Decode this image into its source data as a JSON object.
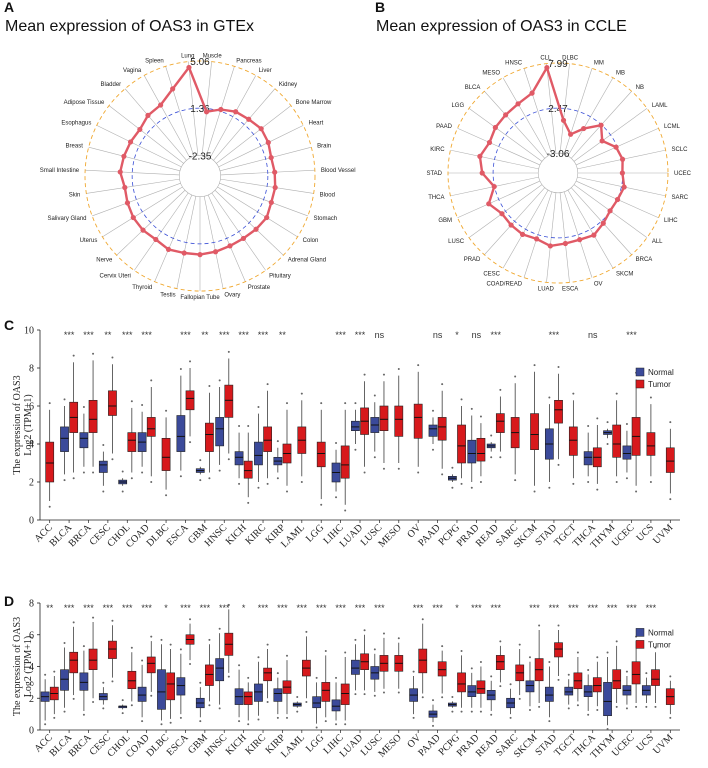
{
  "panels": {
    "A": {
      "letter": "A",
      "title": "Mean expression of OAS3 in GTEx"
    },
    "B": {
      "letter": "B",
      "title": "Mean expression of OAS3 in CCLE"
    },
    "C": {
      "letter": "C"
    },
    "D": {
      "letter": "D"
    }
  },
  "colors": {
    "tumor": "#d7191c",
    "normal": "#3b4a9a",
    "radar_line": "#e05a66",
    "outer_ring": "#f0a830",
    "mid_ring": "#3a4fd6"
  },
  "chart_data": [
    {
      "id": "A",
      "type": "radar",
      "title": "Mean expression of OAS3 in GTEx",
      "ring_labels": [
        "5.06",
        "1.36",
        "-2.35"
      ],
      "range": [
        -2.35,
        5.06
      ],
      "categories": [
        "Muscle",
        "Pancreas",
        "Liver",
        "Kidney",
        "Bone Marrow",
        "Heart",
        "Brain",
        "Blood Vessel",
        "Blood",
        "Stomach",
        "Colon",
        "Adrenal Gland",
        "Pituitary",
        "Prostate",
        "Ovary",
        "Fallopian Tube",
        "Testis",
        "Thyroid",
        "Cervix Uteri",
        "Nerve",
        "Uterus",
        "Salivary Gland",
        "Skin",
        "Small Intestine",
        "Breast",
        "Esophagus",
        "Adipose Tissue",
        "Bladder",
        "Vagina",
        "Spleen",
        "Lung"
      ],
      "values": [
        1.1,
        1.5,
        1.8,
        1.9,
        2.1,
        2.0,
        1.8,
        1.9,
        2.0,
        2.0,
        2.2,
        2.1,
        2.0,
        2.0,
        2.1,
        2.2,
        2.2,
        2.3,
        2.1,
        2.2,
        2.2,
        2.1,
        2.0,
        2.3,
        2.2,
        2.1,
        2.0,
        2.3,
        2.4,
        3.2,
        4.6
      ]
    },
    {
      "id": "B",
      "type": "radar",
      "title": "Mean expression of OAS3 in CCLE",
      "ring_labels": [
        "7.99",
        "2.47",
        "-3.06"
      ],
      "range": [
        -3.06,
        7.99
      ],
      "categories": [
        "DLBC",
        "MM",
        "MB",
        "NB",
        "LAML",
        "LCML",
        "SCLC",
        "UCEC",
        "SARC",
        "LIHC",
        "ALL",
        "BRCA",
        "SKCM",
        "OV",
        "ESCA",
        "LUAD",
        "COAD/READ",
        "CESC",
        "PRAD",
        "LUSC",
        "GBM",
        "THCA",
        "STAD",
        "KIRC",
        "PAAD",
        "LGG",
        "BLCA",
        "MESO",
        "HNSC",
        "CLL"
      ],
      "values": [
        1.0,
        -0.5,
        0.8,
        2.4,
        1.2,
        2.3,
        2.6,
        2.4,
        2.8,
        2.5,
        2.4,
        2.8,
        3.3,
        3.1,
        3.2,
        3.5,
        3.0,
        3.2,
        3.1,
        3.0,
        3.8,
        2.5,
        3.8,
        4.3,
        3.7,
        4.0,
        4.1,
        4.3,
        4.8,
        7.5
      ]
    },
    {
      "id": "C",
      "type": "box",
      "ylabel_lines": [
        "The expression  of OAS3",
        "Log2 (TPM+1)"
      ],
      "ylim": [
        0,
        10
      ],
      "yticks": [
        0,
        2,
        4,
        6,
        8,
        10
      ],
      "legend": [
        "Normal",
        "Tumor"
      ],
      "categories": [
        "ACC",
        "BLCA",
        "BRCA",
        "CESC",
        "CHOL",
        "COAD",
        "DLBC",
        "ESCA",
        "GBM",
        "HNSC",
        "KICH",
        "KIRC",
        "KIRP",
        "LAML",
        "LGG",
        "LIHC",
        "LUAD",
        "LUSC",
        "MESO",
        "OV",
        "PAAD",
        "PCPG",
        "PRAD",
        "READ",
        "SARC",
        "SKCM",
        "STAD",
        "TGCT",
        "THCA",
        "THYM",
        "UCEC",
        "UCS",
        "UVM"
      ],
      "significance": [
        "",
        "***",
        "***",
        "**",
        "***",
        "***",
        "",
        "***",
        "**",
        "***",
        "***",
        "***",
        "**",
        "",
        "",
        "***",
        "***",
        "ns",
        "",
        "",
        "ns",
        "*",
        "ns",
        "***",
        "",
        "",
        "***",
        "",
        "ns",
        "",
        "***",
        "",
        ""
      ],
      "normal": [
        null,
        [
          2.4,
          3.6,
          4.3,
          4.9,
          6.0
        ],
        [
          2.8,
          3.8,
          4.3,
          4.6,
          5.6
        ],
        [
          1.8,
          2.5,
          2.9,
          3.1,
          3.6
        ],
        [
          1.8,
          1.9,
          2.0,
          2.1,
          2.2
        ],
        [
          2.8,
          3.6,
          4.1,
          4.6,
          5.7
        ],
        null,
        [
          2.6,
          3.6,
          4.4,
          5.5,
          7.6
        ],
        [
          2.4,
          2.5,
          2.6,
          2.7,
          2.8
        ],
        [
          2.9,
          3.9,
          4.8,
          5.4,
          7.0
        ],
        [
          2.2,
          2.9,
          3.3,
          3.6,
          4.6
        ],
        [
          2.0,
          2.9,
          3.4,
          4.1,
          5.6
        ],
        [
          2.5,
          2.9,
          3.1,
          3.3,
          3.8
        ],
        null,
        null,
        [
          1.5,
          2.0,
          2.5,
          3.0,
          3.7
        ],
        [
          4.0,
          4.7,
          4.9,
          5.2,
          5.8
        ],
        [
          3.6,
          4.6,
          5.0,
          5.4,
          6.2
        ],
        null,
        null,
        [
          4.0,
          4.4,
          4.8,
          5.0,
          5.4
        ],
        [
          2.0,
          2.1,
          2.2,
          2.3,
          2.4
        ],
        [
          2.0,
          3.0,
          3.5,
          4.2,
          5.5
        ],
        [
          3.6,
          3.8,
          3.9,
          4.0,
          4.1
        ],
        null,
        null,
        [
          2.0,
          3.2,
          4.0,
          4.8,
          6.1
        ],
        null,
        [
          2.3,
          2.9,
          3.3,
          3.6,
          4.6
        ],
        [
          4.3,
          4.5,
          4.6,
          4.7,
          4.8
        ],
        [
          2.5,
          3.2,
          3.5,
          3.9,
          4.7
        ],
        null,
        null
      ],
      "tumor": [
        [
          1.0,
          2.0,
          3.0,
          4.1,
          5.8
        ],
        [
          2.5,
          4.6,
          5.4,
          6.2,
          8.3
        ],
        [
          2.8,
          4.6,
          5.3,
          6.3,
          8.4
        ],
        [
          3.5,
          5.5,
          6.0,
          6.8,
          8.2
        ],
        [
          2.5,
          3.6,
          4.2,
          4.6,
          5.9
        ],
        [
          2.3,
          4.4,
          4.8,
          5.4,
          7.0
        ],
        [
          1.6,
          2.6,
          3.3,
          4.3,
          5.4
        ],
        [
          4.4,
          5.8,
          6.4,
          6.8,
          8.0
        ],
        [
          2.5,
          3.6,
          4.5,
          5.1,
          6.7
        ],
        [
          3.5,
          5.4,
          6.3,
          7.1,
          8.5
        ],
        [
          1.2,
          2.2,
          2.6,
          3.1,
          4.6
        ],
        [
          2.2,
          3.6,
          4.2,
          4.9,
          6.8
        ],
        [
          1.8,
          3.0,
          3.5,
          4.0,
          5.8
        ],
        [
          2.3,
          3.5,
          4.2,
          4.9,
          6.3
        ],
        [
          1.1,
          2.8,
          3.5,
          4.1,
          5.8
        ],
        [
          0.8,
          2.2,
          2.9,
          3.9,
          5.8
        ],
        [
          2.8,
          4.5,
          5.2,
          5.9,
          7.3
        ],
        [
          3.0,
          4.7,
          5.3,
          6.0,
          7.3
        ],
        [
          3.0,
          4.4,
          5.3,
          6.0,
          7.6
        ],
        [
          2.8,
          4.3,
          5.4,
          6.1,
          7.8
        ],
        [
          2.7,
          4.2,
          4.9,
          5.4,
          6.8
        ],
        [
          2.2,
          3.0,
          3.9,
          5.0,
          6.0
        ],
        [
          2.3,
          3.1,
          3.5,
          4.3,
          5.1
        ],
        [
          3.6,
          4.6,
          5.2,
          5.6,
          6.5
        ],
        [
          2.4,
          3.8,
          4.6,
          5.4,
          7.2
        ],
        [
          1.8,
          3.7,
          4.5,
          5.6,
          7.8
        ],
        [
          3.2,
          5.1,
          5.8,
          6.3,
          7.7
        ],
        [
          2.2,
          3.4,
          4.2,
          4.9,
          6.3
        ],
        [
          1.9,
          2.8,
          3.3,
          3.8,
          5.0
        ],
        [
          2.3,
          3.3,
          4.0,
          5.0,
          6.3
        ],
        [
          1.8,
          3.4,
          4.4,
          5.4,
          7.4
        ],
        [
          2.3,
          3.4,
          3.9,
          4.6,
          6.1
        ],
        [
          1.4,
          2.5,
          3.1,
          3.8,
          4.8
        ]
      ]
    },
    {
      "id": "D",
      "type": "box",
      "ylabel_lines": [
        "The expression  of OAS3",
        "Log2 (TPM+1)"
      ],
      "ylim": [
        0,
        8
      ],
      "yticks": [
        0,
        2,
        4,
        6,
        8
      ],
      "legend": [
        "Normal",
        "Tumor"
      ],
      "categories": [
        "ACC",
        "BLCA",
        "BRCA",
        "CESC",
        "CHOL",
        "COAD",
        "DLBC",
        "ESCA",
        "GBM",
        "HNSC",
        "KICH",
        "KIRC",
        "KIRP",
        "LAML",
        "LGG",
        "LIHC",
        "LUAD",
        "LUSC",
        "MESO",
        "OV",
        "PAAD",
        "PCPG",
        "PRAD",
        "READ",
        "SARC",
        "SKCM",
        "STAD",
        "TGCT",
        "THCA",
        "THYM",
        "UCEC",
        "UCS",
        "UVM"
      ],
      "significance": [
        "**",
        "***",
        "***",
        "***",
        "***",
        "***",
        "*",
        "***",
        "***",
        "***",
        "*",
        "***",
        "***",
        "***",
        "***",
        "***",
        "***",
        "***",
        "",
        "***",
        "***",
        "*",
        "***",
        "***",
        "",
        "***",
        "***",
        "***",
        "***",
        "***",
        "***",
        "***",
        ""
      ],
      "normal": [
        [
          0.6,
          1.8,
          2.1,
          2.4,
          3.2
        ],
        [
          1.4,
          2.5,
          3.2,
          3.8,
          5.2
        ],
        [
          1.2,
          2.5,
          3.0,
          3.6,
          5.0
        ],
        [
          1.6,
          1.9,
          2.1,
          2.3,
          2.7
        ],
        [
          1.3,
          1.4,
          1.5,
          1.5,
          1.6
        ],
        [
          0.8,
          1.8,
          2.2,
          2.7,
          4.1
        ],
        [
          0.6,
          1.3,
          2.4,
          3.8,
          5.4
        ],
        [
          1.0,
          2.2,
          2.8,
          3.3,
          4.8
        ],
        [
          0.8,
          1.4,
          1.7,
          2.0,
          2.7
        ],
        [
          1.6,
          3.1,
          3.9,
          4.5,
          6.1
        ],
        [
          0.8,
          1.6,
          2.1,
          2.6,
          3.8
        ],
        [
          0.9,
          1.8,
          2.4,
          2.9,
          4.3
        ],
        [
          1.0,
          1.8,
          2.3,
          2.6,
          3.3
        ],
        [
          1.4,
          1.5,
          1.6,
          1.7,
          1.8
        ],
        [
          0.4,
          1.4,
          1.7,
          2.1,
          3.0
        ],
        [
          0.6,
          1.2,
          1.5,
          1.9,
          3.0
        ],
        [
          2.5,
          3.5,
          3.9,
          4.4,
          5.4
        ],
        [
          2.4,
          3.2,
          3.6,
          4.0,
          4.8
        ],
        null,
        [
          1.0,
          1.8,
          2.2,
          2.6,
          3.4
        ],
        [
          0.5,
          0.8,
          1.0,
          1.2,
          1.6
        ],
        [
          1.4,
          1.5,
          1.6,
          1.7,
          1.8
        ],
        [
          1.4,
          2.1,
          2.4,
          2.8,
          3.6
        ],
        [
          1.2,
          1.9,
          2.2,
          2.5,
          3.1
        ],
        [
          1.0,
          1.4,
          1.7,
          2.0,
          2.6
        ],
        [
          1.5,
          2.4,
          2.8,
          3.1,
          4.3
        ],
        [
          0.8,
          1.8,
          2.2,
          2.7,
          4.0
        ],
        [
          1.6,
          2.2,
          2.4,
          2.7,
          3.2
        ],
        [
          1.2,
          2.1,
          2.4,
          2.8,
          3.5
        ],
        [
          0.3,
          0.9,
          1.8,
          3.0,
          4.6
        ],
        [
          1.6,
          2.2,
          2.5,
          2.8,
          3.4
        ],
        [
          1.7,
          2.2,
          2.5,
          2.8,
          3.3
        ],
        null
      ],
      "tumor": [
        [
          1.0,
          1.9,
          2.3,
          2.7,
          3.4
        ],
        [
          2.2,
          3.6,
          4.4,
          4.9,
          6.5
        ],
        [
          2.0,
          3.8,
          4.4,
          5.1,
          6.8
        ],
        [
          3.3,
          4.5,
          5.1,
          5.6,
          6.6
        ],
        [
          1.8,
          2.6,
          3.1,
          3.7,
          4.9
        ],
        [
          2.4,
          3.6,
          4.2,
          4.6,
          5.6
        ],
        [
          0.7,
          1.9,
          2.9,
          3.6,
          5.1
        ],
        [
          4.4,
          5.4,
          5.7,
          6.0,
          6.7
        ],
        [
          1.8,
          2.8,
          3.5,
          4.1,
          5.4
        ],
        [
          3.6,
          4.7,
          5.4,
          6.1,
          7.6
        ],
        [
          0.6,
          1.6,
          2.1,
          2.4,
          3.0
        ],
        [
          2.0,
          3.1,
          3.6,
          3.9,
          5.1
        ],
        [
          1.0,
          2.3,
          2.7,
          3.1,
          4.4
        ],
        [
          2.0,
          3.4,
          3.9,
          4.4,
          5.9
        ],
        [
          0.8,
          1.8,
          2.5,
          3.0,
          4.7
        ],
        [
          0.6,
          1.6,
          2.3,
          2.9,
          4.6
        ],
        [
          2.5,
          3.8,
          4.3,
          4.8,
          6.0
        ],
        [
          2.6,
          3.7,
          4.2,
          4.7,
          5.8
        ],
        [
          2.6,
          3.7,
          4.2,
          4.7,
          5.5
        ],
        [
          2.3,
          3.6,
          4.4,
          5.1,
          6.7
        ],
        [
          2.3,
          3.4,
          3.8,
          4.3,
          5.0
        ],
        [
          1.4,
          2.4,
          2.9,
          3.6,
          4.7
        ],
        [
          1.4,
          2.3,
          2.6,
          3.1,
          4.0
        ],
        [
          3.0,
          3.8,
          4.3,
          4.7,
          5.3
        ],
        [
          2.2,
          3.1,
          3.6,
          4.1,
          5.1
        ],
        [
          1.7,
          3.1,
          3.8,
          4.5,
          6.3
        ],
        [
          3.4,
          4.6,
          5.1,
          5.5,
          6.3
        ],
        [
          1.8,
          2.6,
          3.1,
          3.6,
          4.6
        ],
        [
          1.5,
          2.4,
          2.8,
          3.3,
          4.3
        ],
        [
          1.7,
          2.6,
          3.1,
          3.8,
          5.3
        ],
        [
          1.7,
          2.9,
          3.5,
          4.3,
          5.6
        ],
        [
          1.7,
          2.8,
          3.2,
          3.8,
          4.9
        ],
        [
          1.0,
          1.6,
          2.1,
          2.6,
          3.1
        ]
      ]
    }
  ]
}
